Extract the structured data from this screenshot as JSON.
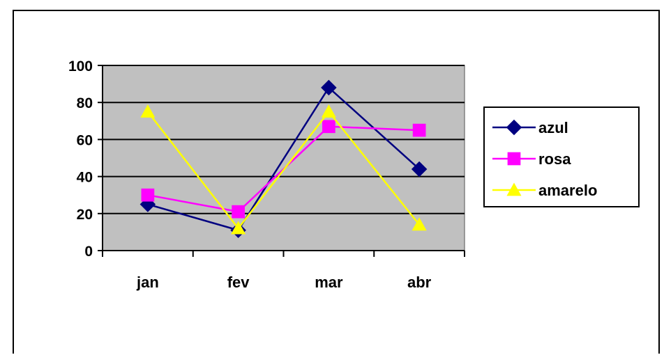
{
  "chart_data": {
    "type": "line",
    "categories": [
      "jan",
      "fev",
      "mar",
      "abr"
    ],
    "ylim": [
      0,
      100
    ],
    "yticks": [
      0,
      20,
      40,
      60,
      80,
      100
    ],
    "grid": true,
    "plot_background": "#C0C0C0",
    "legend_position": "right",
    "series": [
      {
        "name": "azul",
        "values": [
          25,
          11,
          88,
          44
        ],
        "color": "#000080",
        "marker": "diamond"
      },
      {
        "name": "rosa",
        "values": [
          30,
          21,
          67,
          65
        ],
        "color": "#FF00FF",
        "marker": "square"
      },
      {
        "name": "amarelo",
        "values": [
          75,
          12,
          75,
          14
        ],
        "color": "#FFFF00",
        "marker": "triangle"
      }
    ]
  }
}
